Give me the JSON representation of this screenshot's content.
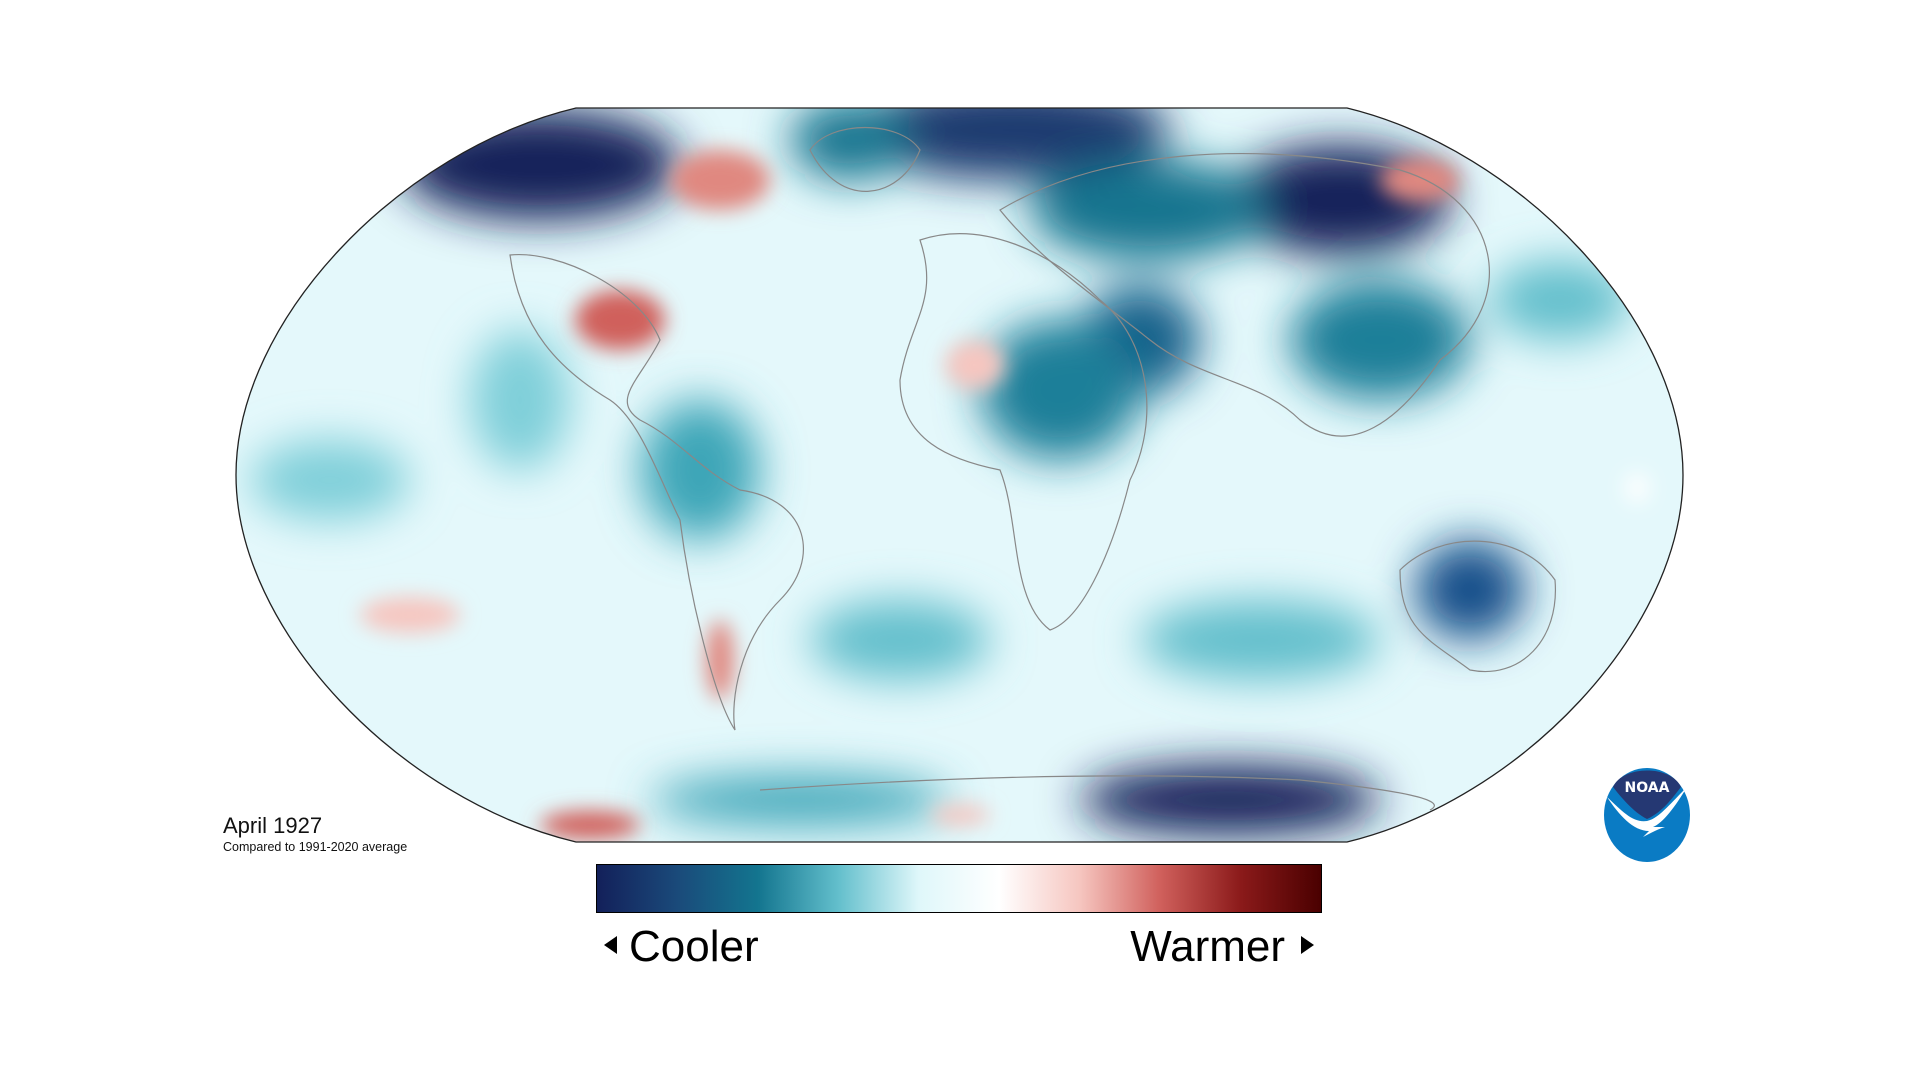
{
  "map": {
    "title": "April 1927",
    "subtitle": "Compared to 1991-2020 average",
    "projection": "Robinson",
    "base_color": "#e4f8fb",
    "land_outline_color": "#888888"
  },
  "legend": {
    "cool_label": "Cooler",
    "warm_label": "Warmer",
    "colors": [
      "#13205a",
      "#1a4a7a",
      "#13758f",
      "#63bfcc",
      "#dff7fa",
      "#ffffff",
      "#f6c6c0",
      "#d0605c",
      "#8b1a1a",
      "#4a0000"
    ]
  },
  "logo": {
    "text": "NOAA",
    "dark": "#253873",
    "light": "#0a7bc4"
  }
}
